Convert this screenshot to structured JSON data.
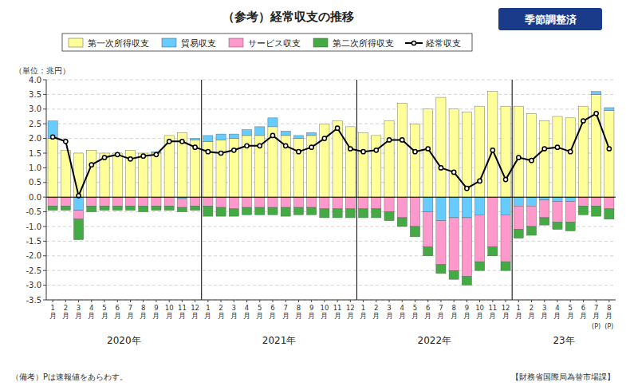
{
  "chart_data": {
    "type": "bar",
    "stacked": true,
    "title": "（参考）経常収支の推移",
    "subtitle": "季節調整済",
    "ylabel": "（単位：兆円）",
    "notes": [
      "（備考）Pは速報値をあらわす。",
      "【財務省国際局為替市場課】"
    ],
    "year_labels": [
      "2020年",
      "2021年",
      "2022年",
      "23年"
    ],
    "annotations": [
      {
        "text": "(P)",
        "index": 42
      },
      {
        "text": "(P)",
        "index": 43
      }
    ],
    "grid": true,
    "legend": "top",
    "ylim": [
      -3.5,
      4.0
    ],
    "yticks": [
      -3.5,
      {
        "value": -3.0,
        "label": "-3.0"
      },
      -2.5,
      {
        "value": -2.0,
        "label": "-2.0"
      },
      -1.5,
      {
        "value": -1.0,
        "label": "-1.0"
      },
      -0.5,
      {
        "value": 0.0,
        "label": "0.0"
      },
      0.5,
      {
        "value": 1.0,
        "label": "1.0"
      },
      1.5,
      {
        "value": 2.0,
        "label": "2.0"
      },
      2.5,
      {
        "value": 3.0,
        "label": "3.0"
      },
      3.5,
      {
        "value": 4.0,
        "label": "4.0"
      }
    ],
    "categories": [
      "1\n月",
      "2\n月",
      "3\n月",
      "4\n月",
      "5\n月",
      "6\n月",
      "7\n月",
      "8\n月",
      "9\n月",
      "10\n月",
      "11\n月",
      "12\n月",
      "1\n月",
      "2\n月",
      "3\n月",
      "4\n月",
      "5\n月",
      "6\n月",
      "7\n月",
      "8\n月",
      "9\n月",
      "10\n月",
      "11\n月",
      "12\n月",
      "1\n月",
      "2\n月",
      "3\n月",
      "4\n月",
      "5\n月",
      "6\n月",
      "7\n月",
      "8\n月",
      "9\n月",
      "10\n月",
      "11\n月",
      "12\n月",
      "1\n月",
      "2\n月",
      "3\n月",
      "4\n月",
      "5\n月",
      "6\n月",
      "7\n月",
      "8\n月"
    ],
    "series": [
      {
        "name": "第一次所得収支",
        "type": "bar",
        "color": "#FFFF99",
        "values": [
          2.0,
          1.6,
          1.5,
          1.6,
          1.5,
          1.5,
          1.6,
          1.5,
          1.5,
          2.1,
          2.2,
          1.95,
          1.9,
          1.95,
          2.0,
          2.1,
          2.1,
          2.4,
          2.1,
          2.0,
          2.1,
          2.5,
          2.6,
          2.4,
          2.2,
          2.1,
          2.6,
          3.2,
          2.5,
          3.0,
          3.4,
          3.0,
          2.9,
          3.1,
          3.6,
          3.1,
          3.1,
          2.85,
          2.6,
          2.75,
          2.7,
          3.1,
          3.5,
          2.95
        ]
      },
      {
        "name": "貿易収支",
        "type": "bar",
        "color": "#66CCFF",
        "values": [
          0.6,
          0.0,
          -0.45,
          0.0,
          0.0,
          0.0,
          0.0,
          0.0,
          0.05,
          0.0,
          -0.05,
          0.05,
          0.2,
          0.2,
          0.15,
          0.2,
          0.3,
          0.3,
          0.15,
          0.1,
          0.1,
          0.0,
          0.0,
          0.0,
          0.0,
          0.0,
          0.0,
          0.0,
          0.0,
          -0.5,
          -0.8,
          -0.7,
          -0.7,
          -0.6,
          0.0,
          -0.6,
          -0.3,
          -0.3,
          -0.1,
          -0.15,
          -0.15,
          0.0,
          0.1,
          0.1
        ]
      },
      {
        "name": "サービス収支",
        "type": "bar",
        "color": "#FF99CC",
        "values": [
          -0.3,
          -0.3,
          -0.3,
          -0.3,
          -0.3,
          -0.3,
          -0.3,
          -0.3,
          -0.3,
          -0.3,
          -0.3,
          -0.3,
          -0.3,
          -0.35,
          -0.4,
          -0.35,
          -0.35,
          -0.35,
          -0.35,
          -0.35,
          -0.35,
          -0.4,
          -0.4,
          -0.4,
          -0.4,
          -0.4,
          -0.5,
          -0.7,
          -1.0,
          -1.2,
          -1.5,
          -1.8,
          -2.0,
          -1.6,
          -1.7,
          -1.6,
          -0.8,
          -0.7,
          -0.6,
          -0.7,
          -0.7,
          -0.3,
          -0.3,
          -0.4
        ]
      },
      {
        "name": "第二次所得収支",
        "type": "bar",
        "color": "#44AA44",
        "values": [
          -0.15,
          -0.15,
          -0.7,
          -0.2,
          -0.15,
          -0.15,
          -0.15,
          -0.2,
          -0.15,
          -0.15,
          -0.15,
          -0.15,
          -0.35,
          -0.3,
          -0.25,
          -0.25,
          -0.25,
          -0.25,
          -0.3,
          -0.25,
          -0.25,
          -0.3,
          -0.3,
          -0.3,
          -0.3,
          -0.3,
          -0.3,
          -0.3,
          -0.35,
          -0.3,
          -0.3,
          -0.3,
          -0.3,
          -0.3,
          -0.3,
          -0.3,
          -0.3,
          -0.3,
          -0.25,
          -0.25,
          -0.3,
          -0.3,
          -0.35,
          -0.35
        ]
      },
      {
        "name": "経常収支",
        "type": "line",
        "color": "#000000",
        "marker": "circle",
        "values": [
          2.05,
          1.9,
          0.05,
          1.1,
          1.35,
          1.45,
          1.3,
          1.4,
          1.45,
          1.9,
          1.9,
          1.7,
          1.55,
          1.5,
          1.6,
          1.75,
          1.75,
          2.1,
          1.75,
          1.55,
          1.7,
          2.0,
          2.35,
          1.65,
          1.55,
          1.6,
          1.95,
          1.95,
          1.55,
          1.65,
          1.0,
          0.85,
          0.3,
          0.55,
          1.6,
          0.6,
          1.35,
          1.25,
          1.65,
          1.7,
          1.55,
          2.6,
          2.85,
          1.65
        ]
      }
    ]
  }
}
